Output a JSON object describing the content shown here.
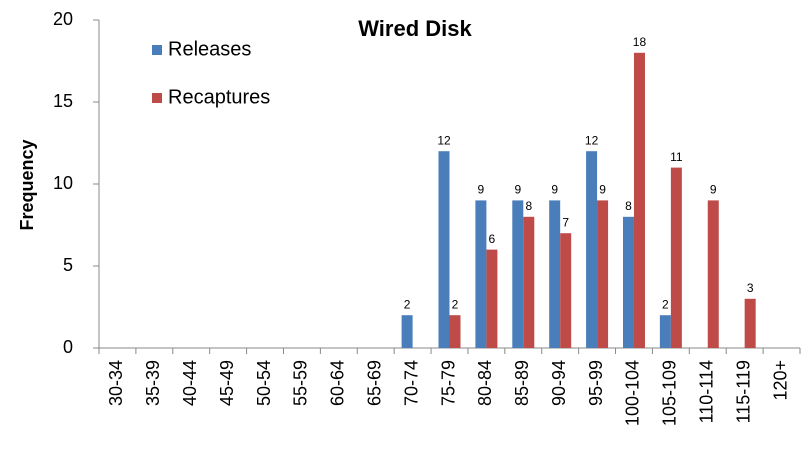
{
  "chart_data": {
    "type": "bar",
    "title": "Wired Disk",
    "y_label": "Frequency",
    "categories": [
      "30-34",
      "35-39",
      "40-44",
      "45-49",
      "50-54",
      "55-59",
      "60-64",
      "65-69",
      "70-74",
      "75-79",
      "80-84",
      "85-89",
      "90-94",
      "95-99",
      "100-104",
      "105-109",
      "110-114",
      "115-119",
      "120+"
    ],
    "series": [
      {
        "name": "Releases",
        "color": "#4a7ebb",
        "values": [
          0,
          0,
          0,
          0,
          0,
          0,
          0,
          0,
          2,
          12,
          9,
          9,
          9,
          12,
          8,
          2,
          0,
          0,
          0
        ]
      },
      {
        "name": "Recaptures",
        "color": "#be4b48",
        "values": [
          0,
          0,
          0,
          0,
          0,
          0,
          0,
          0,
          0,
          2,
          6,
          8,
          7,
          9,
          18,
          11,
          9,
          3,
          0
        ]
      }
    ],
    "ylim": [
      0,
      20
    ],
    "yticks": [
      0,
      5,
      10,
      15,
      20
    ],
    "grid": false,
    "legend": "top-left"
  }
}
